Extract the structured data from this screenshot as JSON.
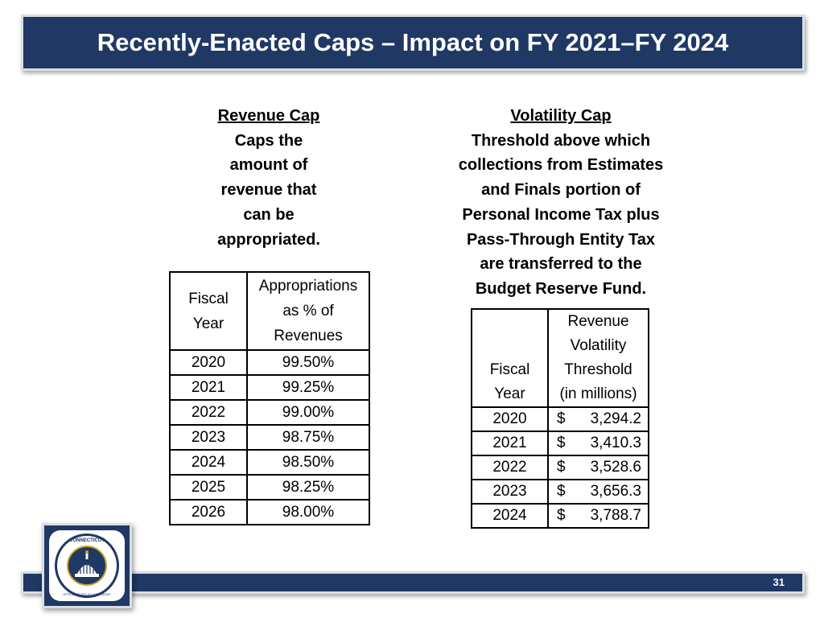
{
  "slide": {
    "title": "Recently-Enacted Caps – Impact on FY 2021–FY 2024",
    "page_number": "31"
  },
  "revenue_cap": {
    "heading": "Revenue Cap",
    "description_lines": [
      "Caps the",
      "amount of",
      "revenue that",
      "can be",
      "appropriated."
    ],
    "table": {
      "headers": [
        "Fiscal Year",
        "Appropriations as % of Revenues"
      ],
      "header_lines": [
        [
          "Fiscal",
          "Year"
        ],
        [
          "Appropriations",
          "as % of",
          "Revenues"
        ]
      ],
      "rows": [
        [
          "2020",
          "99.50%"
        ],
        [
          "2021",
          "99.25%"
        ],
        [
          "2022",
          "99.00%"
        ],
        [
          "2023",
          "98.75%"
        ],
        [
          "2024",
          "98.50%"
        ],
        [
          "2025",
          "98.25%"
        ],
        [
          "2026",
          "98.00%"
        ]
      ]
    }
  },
  "volatility_cap": {
    "heading": "Volatility Cap",
    "description_lines": [
      "Threshold above which",
      "collections from Estimates",
      "and Finals portion of",
      "Personal Income Tax plus",
      "Pass-Through Entity Tax",
      "are transferred to the",
      "Budget Reserve Fund."
    ],
    "table": {
      "header_lines": [
        [
          "Fiscal",
          "Year"
        ],
        [
          "Revenue",
          "Volatility",
          "Threshold",
          "(in millions)"
        ]
      ],
      "currency_symbol": "$",
      "rows": [
        [
          "2020",
          "3,294.2"
        ],
        [
          "2021",
          "3,410.3"
        ],
        [
          "2022",
          "3,528.6"
        ],
        [
          "2023",
          "3,656.3"
        ],
        [
          "2024",
          "3,788.7"
        ]
      ]
    }
  },
  "logo": {
    "text": "CONNECTICUT OFFICE OF POLICY AND MANAGEMENT"
  },
  "colors": {
    "navy": "#1f3864",
    "frame": "#d9dde3"
  }
}
